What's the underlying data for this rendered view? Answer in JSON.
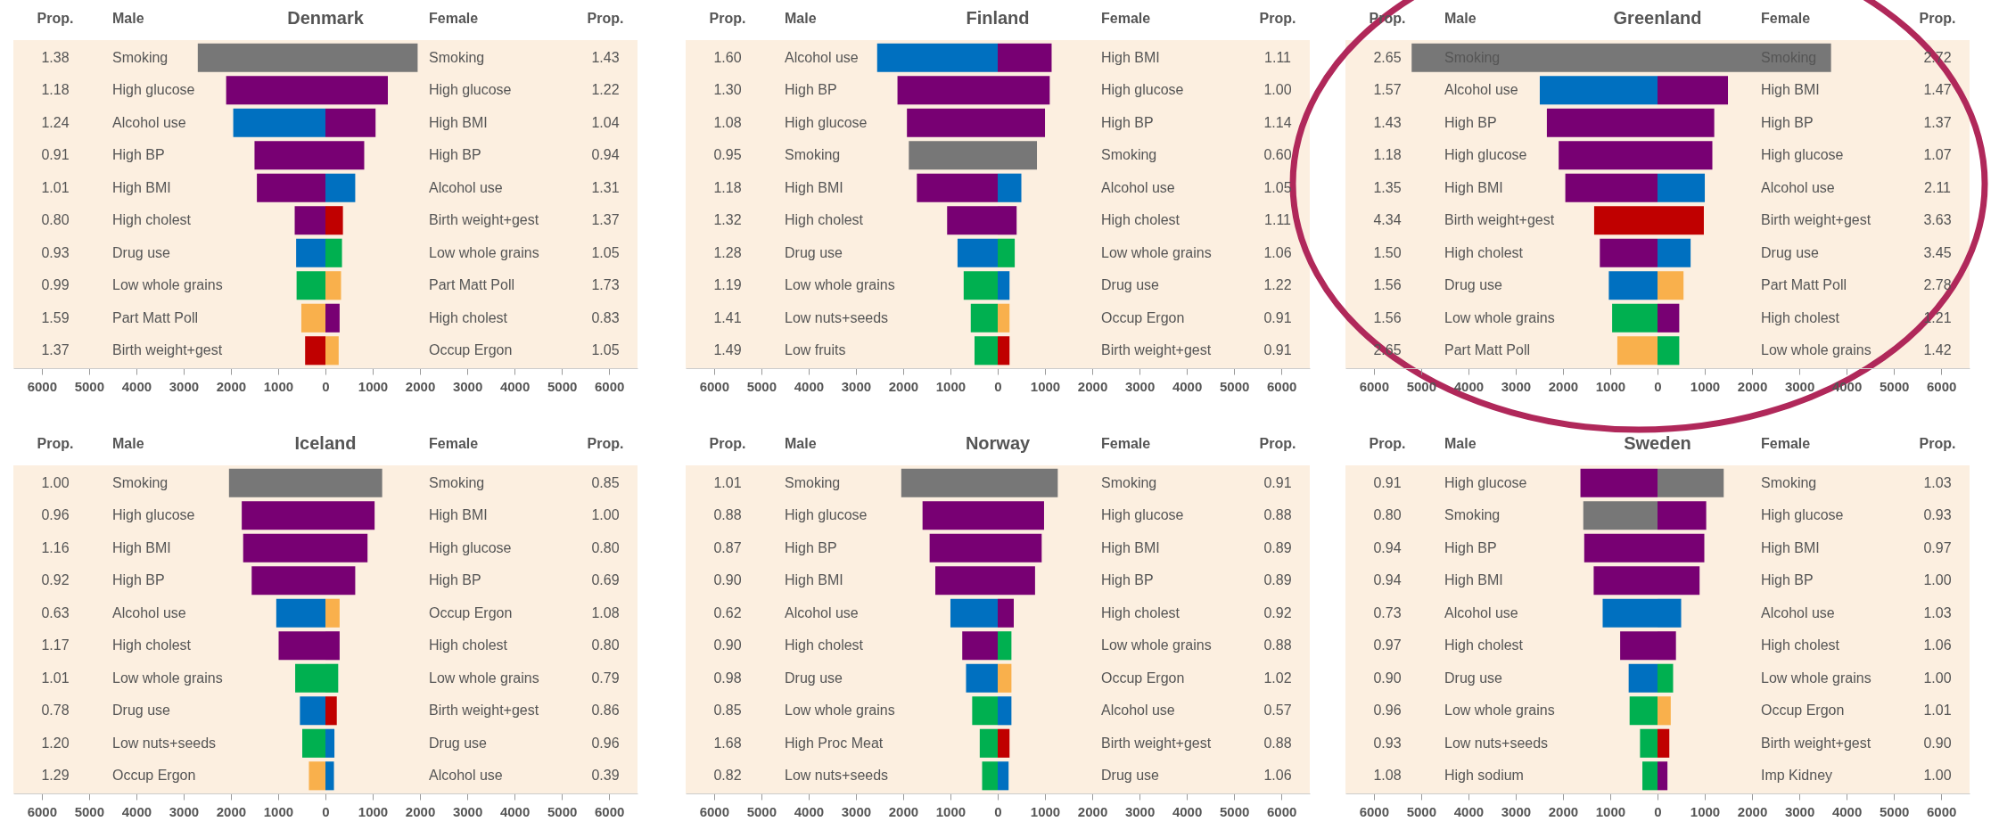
{
  "chart_data": [
    {
      "type": "bar",
      "orientation": "horizontal",
      "title": "Denmark",
      "subtitle": "Male",
      "ylabel": "Prop.",
      "categories": [
        "Smoking",
        "High glucose",
        "Alcohol use",
        "High BP",
        "High BMI",
        "High cholest",
        "Drug use",
        "Low whole grains",
        "Part Matt Poll",
        "Birth weight+gest"
      ],
      "y2_categories": [
        "1.38",
        "1.18",
        "1.24",
        "0.91",
        "1.01",
        "0.80",
        "0.93",
        "0.99",
        "1.59",
        "1.37"
      ],
      "values": [
        2700,
        2100,
        1950,
        1500,
        1450,
        650,
        620,
        610,
        510,
        430
      ],
      "colors": [
        "#777777",
        "#780073",
        "#0070c0",
        "#780073",
        "#780073",
        "#780073",
        "#0070c0",
        "#00b050",
        "#f9b04c",
        "#c00000"
      ],
      "xlim": [
        6600,
        0
      ],
      "xticks": [
        6000,
        5000,
        4000,
        3000,
        2000,
        1000
      ]
    },
    {
      "type": "bar",
      "orientation": "horizontal",
      "subtitle": "Female",
      "ylabel": "Prop.",
      "categories": [
        "Smoking",
        "High glucose",
        "High BMI",
        "High BP",
        "Alcohol use",
        "Birth weight+gest",
        "Low whole grains",
        "Part Matt Poll",
        "High cholest",
        "Occup Ergon"
      ],
      "y2_categories": [
        "1.43",
        "1.22",
        "1.04",
        "0.94",
        "1.31",
        "1.37",
        "1.05",
        "1.73",
        "0.83",
        "1.05"
      ],
      "values": [
        1950,
        1320,
        1060,
        820,
        630,
        370,
        350,
        330,
        300,
        280
      ],
      "colors": [
        "#777777",
        "#780073",
        "#780073",
        "#780073",
        "#0070c0",
        "#c00000",
        "#00b050",
        "#f9b04c",
        "#780073",
        "#f9b04c"
      ],
      "xlim": [
        0,
        6600
      ],
      "xticks": [
        0,
        1000,
        2000,
        3000,
        4000,
        5000,
        6000
      ]
    },
    {
      "type": "bar",
      "orientation": "horizontal",
      "title": "Finland",
      "subtitle": "Male",
      "ylabel": "Prop.",
      "categories": [
        "Alcohol use",
        "High BP",
        "High glucose",
        "Smoking",
        "High BMI",
        "High cholest",
        "Drug use",
        "Low whole grains",
        "Low nuts+seeds",
        "Low fruits"
      ],
      "y2_categories": [
        "1.60",
        "1.30",
        "1.08",
        "0.95",
        "1.18",
        "1.32",
        "1.28",
        "1.19",
        "1.41",
        "1.49"
      ],
      "values": [
        2550,
        2120,
        1920,
        1880,
        1710,
        1070,
        850,
        720,
        570,
        490
      ],
      "colors": [
        "#0070c0",
        "#780073",
        "#780073",
        "#777777",
        "#780073",
        "#780073",
        "#0070c0",
        "#00b050",
        "#00b050",
        "#00b050"
      ],
      "xlim": [
        6600,
        0
      ],
      "xticks": [
        6000,
        5000,
        4000,
        3000,
        2000,
        1000
      ]
    },
    {
      "type": "bar",
      "orientation": "horizontal",
      "subtitle": "Female",
      "ylabel": "Prop.",
      "categories": [
        "High BMI",
        "High glucose",
        "High BP",
        "Smoking",
        "Alcohol use",
        "High cholest",
        "Low whole grains",
        "Drug use",
        "Occup Ergon",
        "Birth weight+gest"
      ],
      "y2_categories": [
        "1.11",
        "1.00",
        "1.14",
        "0.60",
        "1.05",
        "1.11",
        "1.06",
        "1.22",
        "0.91",
        "0.91"
      ],
      "values": [
        1140,
        1100,
        1000,
        830,
        500,
        400,
        360,
        250,
        250,
        250
      ],
      "colors": [
        "#780073",
        "#780073",
        "#780073",
        "#777777",
        "#0070c0",
        "#780073",
        "#00b050",
        "#0070c0",
        "#f9b04c",
        "#c00000"
      ],
      "xlim": [
        0,
        6600
      ],
      "xticks": [
        0,
        1000,
        2000,
        3000,
        4000,
        5000,
        6000
      ]
    },
    {
      "type": "bar",
      "orientation": "horizontal",
      "title": "Greenland",
      "subtitle": "Male",
      "ylabel": "Prop.",
      "categories": [
        "Smoking",
        "Alcohol use",
        "High BP",
        "High glucose",
        "High BMI",
        "Birth weight+gest",
        "High cholest",
        "Drug use",
        "Low whole grains",
        "Part Matt Poll"
      ],
      "y2_categories": [
        "2.65",
        "1.57",
        "1.43",
        "1.18",
        "1.35",
        "4.34",
        "1.50",
        "1.56",
        "1.56",
        "2.65"
      ],
      "values": [
        5200,
        2490,
        2340,
        2090,
        1950,
        1340,
        1220,
        1030,
        960,
        850
      ],
      "colors": [
        "#777777",
        "#0070c0",
        "#780073",
        "#780073",
        "#780073",
        "#c00000",
        "#780073",
        "#0070c0",
        "#00b050",
        "#f9b04c"
      ],
      "xlim": [
        6600,
        0
      ],
      "xticks": [
        6000,
        5000,
        4000,
        3000,
        2000,
        1000
      ]
    },
    {
      "type": "bar",
      "orientation": "horizontal",
      "subtitle": "Female",
      "ylabel": "Prop.",
      "categories": [
        "Smoking",
        "High BMI",
        "High BP",
        "High glucose",
        "Alcohol use",
        "Birth weight+gest",
        "Drug use",
        "Part Matt Poll",
        "High cholest",
        "Low whole grains"
      ],
      "y2_categories": [
        "2.72",
        "1.47",
        "1.37",
        "1.07",
        "2.11",
        "3.63",
        "3.45",
        "2.78",
        "1.21",
        "1.42"
      ],
      "values": [
        3670,
        1490,
        1200,
        1160,
        1000,
        980,
        700,
        550,
        460,
        460
      ],
      "colors": [
        "#777777",
        "#780073",
        "#780073",
        "#780073",
        "#0070c0",
        "#c00000",
        "#0070c0",
        "#f9b04c",
        "#780073",
        "#00b050"
      ],
      "xlim": [
        0,
        6600
      ],
      "xticks": [
        0,
        1000,
        2000,
        3000,
        4000,
        5000,
        6000
      ]
    },
    {
      "type": "bar",
      "orientation": "horizontal",
      "title": "Iceland",
      "subtitle": "Male",
      "ylabel": "Prop.",
      "categories": [
        "Smoking",
        "High glucose",
        "High BMI",
        "High BP",
        "Alcohol use",
        "High cholest",
        "Low whole grains",
        "Drug use",
        "Low nuts+seeds",
        "Occup Ergon"
      ],
      "y2_categories": [
        "1.00",
        "0.96",
        "1.16",
        "0.92",
        "0.63",
        "1.17",
        "1.01",
        "0.78",
        "1.20",
        "1.29"
      ],
      "values": [
        2040,
        1770,
        1740,
        1560,
        1040,
        990,
        640,
        540,
        490,
        350
      ],
      "colors": [
        "#777777",
        "#780073",
        "#780073",
        "#780073",
        "#0070c0",
        "#780073",
        "#00b050",
        "#0070c0",
        "#00b050",
        "#f9b04c"
      ],
      "xlim": [
        6600,
        0
      ],
      "xticks": [
        6000,
        5000,
        4000,
        3000,
        2000,
        1000
      ]
    },
    {
      "type": "bar",
      "orientation": "horizontal",
      "subtitle": "Female",
      "ylabel": "Prop.",
      "categories": [
        "Smoking",
        "High BMI",
        "High glucose",
        "High BP",
        "Occup Ergon",
        "High cholest",
        "Low whole grains",
        "Birth weight+gest",
        "Drug use",
        "Alcohol use"
      ],
      "y2_categories": [
        "0.85",
        "1.00",
        "0.80",
        "0.69",
        "1.08",
        "0.80",
        "0.79",
        "0.86",
        "0.96",
        "0.39"
      ],
      "values": [
        1200,
        1040,
        890,
        630,
        300,
        300,
        270,
        240,
        190,
        180
      ],
      "colors": [
        "#777777",
        "#780073",
        "#780073",
        "#780073",
        "#f9b04c",
        "#780073",
        "#00b050",
        "#c00000",
        "#0070c0",
        "#0070c0"
      ],
      "xlim": [
        0,
        6600
      ],
      "xticks": [
        0,
        1000,
        2000,
        3000,
        4000,
        5000,
        6000
      ]
    },
    {
      "type": "bar",
      "orientation": "horizontal",
      "title": "Norway",
      "subtitle": "Male",
      "ylabel": "Prop.",
      "categories": [
        "Smoking",
        "High glucose",
        "High BP",
        "High BMI",
        "Alcohol use",
        "High cholest",
        "Drug use",
        "Low whole grains",
        "High Proc Meat",
        "Low nuts+seeds"
      ],
      "y2_categories": [
        "1.01",
        "0.88",
        "0.87",
        "0.90",
        "0.62",
        "0.90",
        "0.98",
        "0.85",
        "1.68",
        "0.82"
      ],
      "values": [
        2040,
        1590,
        1440,
        1320,
        1000,
        750,
        670,
        540,
        380,
        330
      ],
      "colors": [
        "#777777",
        "#780073",
        "#780073",
        "#780073",
        "#0070c0",
        "#780073",
        "#0070c0",
        "#00b050",
        "#00b050",
        "#00b050"
      ],
      "xlim": [
        6600,
        0
      ],
      "xticks": [
        6000,
        5000,
        4000,
        3000,
        2000,
        1000
      ]
    },
    {
      "type": "bar",
      "orientation": "horizontal",
      "subtitle": "Female",
      "ylabel": "Prop.",
      "categories": [
        "Smoking",
        "High glucose",
        "High BMI",
        "High BP",
        "High cholest",
        "Low whole grains",
        "Occup Ergon",
        "Alcohol use",
        "Birth weight+gest",
        "Drug use"
      ],
      "y2_categories": [
        "0.91",
        "0.88",
        "0.89",
        "0.89",
        "0.92",
        "0.88",
        "1.02",
        "0.57",
        "0.88",
        "1.06"
      ],
      "values": [
        1270,
        980,
        930,
        790,
        340,
        290,
        290,
        290,
        250,
        230
      ],
      "colors": [
        "#777777",
        "#780073",
        "#780073",
        "#780073",
        "#780073",
        "#00b050",
        "#f9b04c",
        "#0070c0",
        "#c00000",
        "#0070c0"
      ],
      "xlim": [
        0,
        6600
      ],
      "xticks": [
        0,
        1000,
        2000,
        3000,
        4000,
        5000,
        6000
      ]
    },
    {
      "type": "bar",
      "orientation": "horizontal",
      "title": "Sweden",
      "subtitle": "Male",
      "ylabel": "Prop.",
      "categories": [
        "High glucose",
        "Smoking",
        "High BP",
        "High BMI",
        "Alcohol use",
        "High cholest",
        "Drug use",
        "Low whole grains",
        "Low nuts+seeds",
        "High sodium"
      ],
      "y2_categories": [
        "0.91",
        "0.80",
        "0.94",
        "0.94",
        "0.73",
        "0.97",
        "0.90",
        "0.96",
        "0.93",
        "1.08"
      ],
      "values": [
        1630,
        1570,
        1550,
        1350,
        1160,
        790,
        610,
        590,
        370,
        320
      ],
      "colors": [
        "#780073",
        "#777777",
        "#780073",
        "#780073",
        "#0070c0",
        "#780073",
        "#0070c0",
        "#00b050",
        "#00b050",
        "#00b050"
      ],
      "xlim": [
        6600,
        0
      ],
      "xticks": [
        6000,
        5000,
        4000,
        3000,
        2000,
        1000
      ]
    },
    {
      "type": "bar",
      "orientation": "horizontal",
      "subtitle": "Female",
      "ylabel": "Prop.",
      "categories": [
        "Smoking",
        "High glucose",
        "High BMI",
        "High BP",
        "Alcohol use",
        "High cholest",
        "Low whole grains",
        "Occup Ergon",
        "Birth weight+gest",
        "Imp Kidney"
      ],
      "y2_categories": [
        "1.03",
        "0.93",
        "0.97",
        "1.00",
        "1.03",
        "1.06",
        "1.00",
        "1.01",
        "0.90",
        "1.00"
      ],
      "values": [
        1400,
        1030,
        990,
        890,
        500,
        390,
        330,
        280,
        250,
        210
      ],
      "colors": [
        "#777777",
        "#780073",
        "#780073",
        "#780073",
        "#0070c0",
        "#780073",
        "#00b050",
        "#f9b04c",
        "#c00000",
        "#780073"
      ],
      "xlim": [
        0,
        6600
      ],
      "xticks": [
        0,
        1000,
        2000,
        3000,
        4000,
        5000,
        6000
      ]
    }
  ]
}
